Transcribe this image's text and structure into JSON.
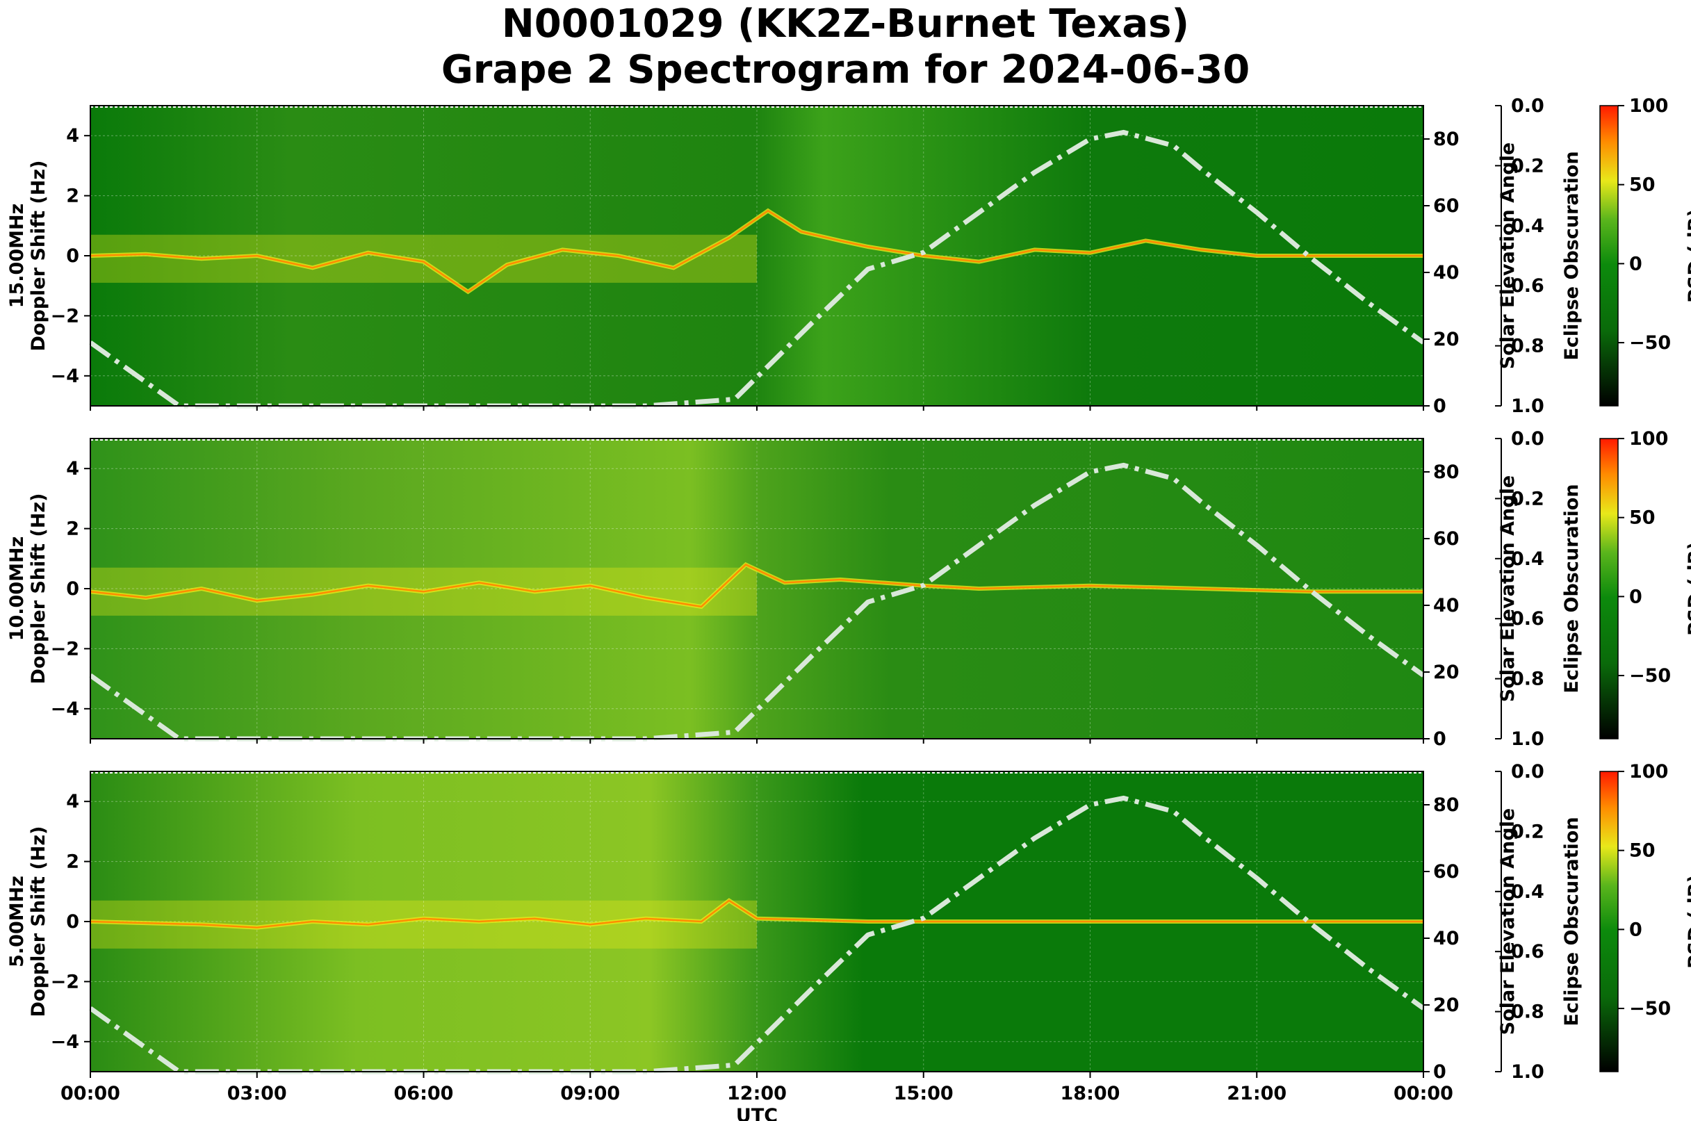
{
  "title_line1": "N0001029 (KK2Z-Burnet Texas)",
  "title_line2": "Grape 2 Spectrogram for 2024-06-30",
  "colors": {
    "background_green": "#0a7a0a",
    "mid_green": "#3a9a16",
    "yellow": "#e8e81a",
    "orange": "#ff8c00",
    "red": "#ff1a00",
    "solar_curve": "#d9e8d9"
  },
  "chart_data": [
    {
      "type": "heatmap",
      "ylabel_freq": "15.00MHz",
      "ylabel": "Doppler Shift (Hz)",
      "ylim": [
        -5,
        5
      ],
      "yticks": [
        -4,
        -2,
        0,
        2,
        4
      ],
      "ytick_labels": [
        "−4",
        "−2",
        "0",
        "2",
        "4"
      ],
      "right_axis_label": "Solar Elevation Angle",
      "right_ylim": [
        0,
        90
      ],
      "right_yticks": [
        0,
        20,
        40,
        60,
        80
      ],
      "eclipse_label": "Eclipse Obscuration",
      "eclipse_ylim": [
        1.0,
        0.0
      ],
      "eclipse_ticks": [
        "0.0",
        "0.2",
        "0.4",
        "0.6",
        "0.8",
        "1.0"
      ],
      "colorbar_label": "PSD (dB)",
      "colorbar_ticks": [
        "100",
        "50",
        "0",
        "−50"
      ],
      "colorbar_range": [
        -90,
        100
      ],
      "trace_doppler_hz": [
        [
          0,
          0
        ],
        [
          1,
          0.05
        ],
        [
          2,
          -0.1
        ],
        [
          3,
          0
        ],
        [
          4,
          -0.4
        ],
        [
          5,
          0.1
        ],
        [
          6,
          -0.2
        ],
        [
          6.8,
          -1.2
        ],
        [
          7.5,
          -0.3
        ],
        [
          8.5,
          0.2
        ],
        [
          9.5,
          0
        ],
        [
          10.5,
          -0.4
        ],
        [
          11.5,
          0.6
        ],
        [
          12.2,
          1.5
        ],
        [
          12.8,
          0.8
        ],
        [
          13.5,
          0.5
        ],
        [
          14,
          0.3
        ],
        [
          15,
          0
        ],
        [
          16,
          -0.2
        ],
        [
          17,
          0.2
        ],
        [
          18,
          0.1
        ],
        [
          19,
          0.5
        ],
        [
          20,
          0.2
        ],
        [
          21,
          0
        ],
        [
          22,
          0
        ],
        [
          24,
          0
        ]
      ]
    },
    {
      "type": "heatmap",
      "ylabel_freq": "10.00MHz",
      "ylabel": "Doppler Shift (Hz)",
      "ylim": [
        -5,
        5
      ],
      "yticks": [
        -4,
        -2,
        0,
        2,
        4
      ],
      "ytick_labels": [
        "−4",
        "−2",
        "0",
        "2",
        "4"
      ],
      "right_axis_label": "Solar Elevation Angle",
      "right_ylim": [
        0,
        90
      ],
      "right_yticks": [
        0,
        20,
        40,
        60,
        80
      ],
      "eclipse_label": "Eclipse Obscuration",
      "eclipse_ylim": [
        1.0,
        0.0
      ],
      "eclipse_ticks": [
        "0.0",
        "0.2",
        "0.4",
        "0.6",
        "0.8",
        "1.0"
      ],
      "colorbar_label": "PSD (dB)",
      "colorbar_ticks": [
        "100",
        "50",
        "0",
        "−50"
      ],
      "colorbar_range": [
        -90,
        100
      ],
      "trace_doppler_hz": [
        [
          0,
          -0.1
        ],
        [
          1,
          -0.3
        ],
        [
          2,
          0
        ],
        [
          3,
          -0.4
        ],
        [
          4,
          -0.2
        ],
        [
          5,
          0.1
        ],
        [
          6,
          -0.1
        ],
        [
          7,
          0.2
        ],
        [
          8,
          -0.1
        ],
        [
          9,
          0.1
        ],
        [
          10,
          -0.3
        ],
        [
          11,
          -0.6
        ],
        [
          11.8,
          0.8
        ],
        [
          12.5,
          0.2
        ],
        [
          13.5,
          0.3
        ],
        [
          15,
          0.1
        ],
        [
          16,
          0
        ],
        [
          18,
          0.1
        ],
        [
          20,
          0
        ],
        [
          22,
          -0.1
        ],
        [
          24,
          -0.1
        ]
      ]
    },
    {
      "type": "heatmap",
      "ylabel_freq": "5.00MHz",
      "ylabel": "Doppler Shift (Hz)",
      "xlabel": "UTC",
      "xticks": [
        "00:00",
        "03:00",
        "06:00",
        "09:00",
        "12:00",
        "15:00",
        "18:00",
        "21:00",
        "00:00"
      ],
      "ylim": [
        -5,
        5
      ],
      "yticks": [
        -4,
        -2,
        0,
        2,
        4
      ],
      "ytick_labels": [
        "−4",
        "−2",
        "0",
        "2",
        "4"
      ],
      "right_axis_label": "Solar Elevation Angle",
      "right_ylim": [
        0,
        90
      ],
      "right_yticks": [
        0,
        20,
        40,
        60,
        80
      ],
      "eclipse_label": "Eclipse Obscuration",
      "eclipse_ylim": [
        1.0,
        0.0
      ],
      "eclipse_ticks": [
        "0.0",
        "0.2",
        "0.4",
        "0.6",
        "0.8",
        "1.0"
      ],
      "colorbar_label": "PSD (dB)",
      "colorbar_ticks": [
        "100",
        "50",
        "0",
        "−50"
      ],
      "colorbar_range": [
        -90,
        100
      ],
      "trace_doppler_hz": [
        [
          0,
          0
        ],
        [
          2,
          -0.1
        ],
        [
          3,
          -0.2
        ],
        [
          4,
          0
        ],
        [
          5,
          -0.1
        ],
        [
          6,
          0.1
        ],
        [
          7,
          0
        ],
        [
          8,
          0.1
        ],
        [
          9,
          -0.1
        ],
        [
          10,
          0.1
        ],
        [
          11,
          0
        ],
        [
          11.5,
          0.7
        ],
        [
          12,
          0.1
        ],
        [
          14,
          0
        ],
        [
          24,
          0
        ]
      ]
    }
  ],
  "solar_elevation_deg": [
    [
      0,
      19
    ],
    [
      1.6,
      0
    ],
    [
      10,
      0
    ],
    [
      11.6,
      2
    ],
    [
      13,
      25
    ],
    [
      14,
      41
    ],
    [
      15,
      46
    ],
    [
      16,
      58
    ],
    [
      17,
      70
    ],
    [
      18,
      80
    ],
    [
      18.6,
      82
    ],
    [
      19.5,
      78
    ],
    [
      20,
      71
    ],
    [
      21,
      58
    ],
    [
      22,
      44
    ],
    [
      23,
      31
    ],
    [
      24,
      19
    ]
  ]
}
